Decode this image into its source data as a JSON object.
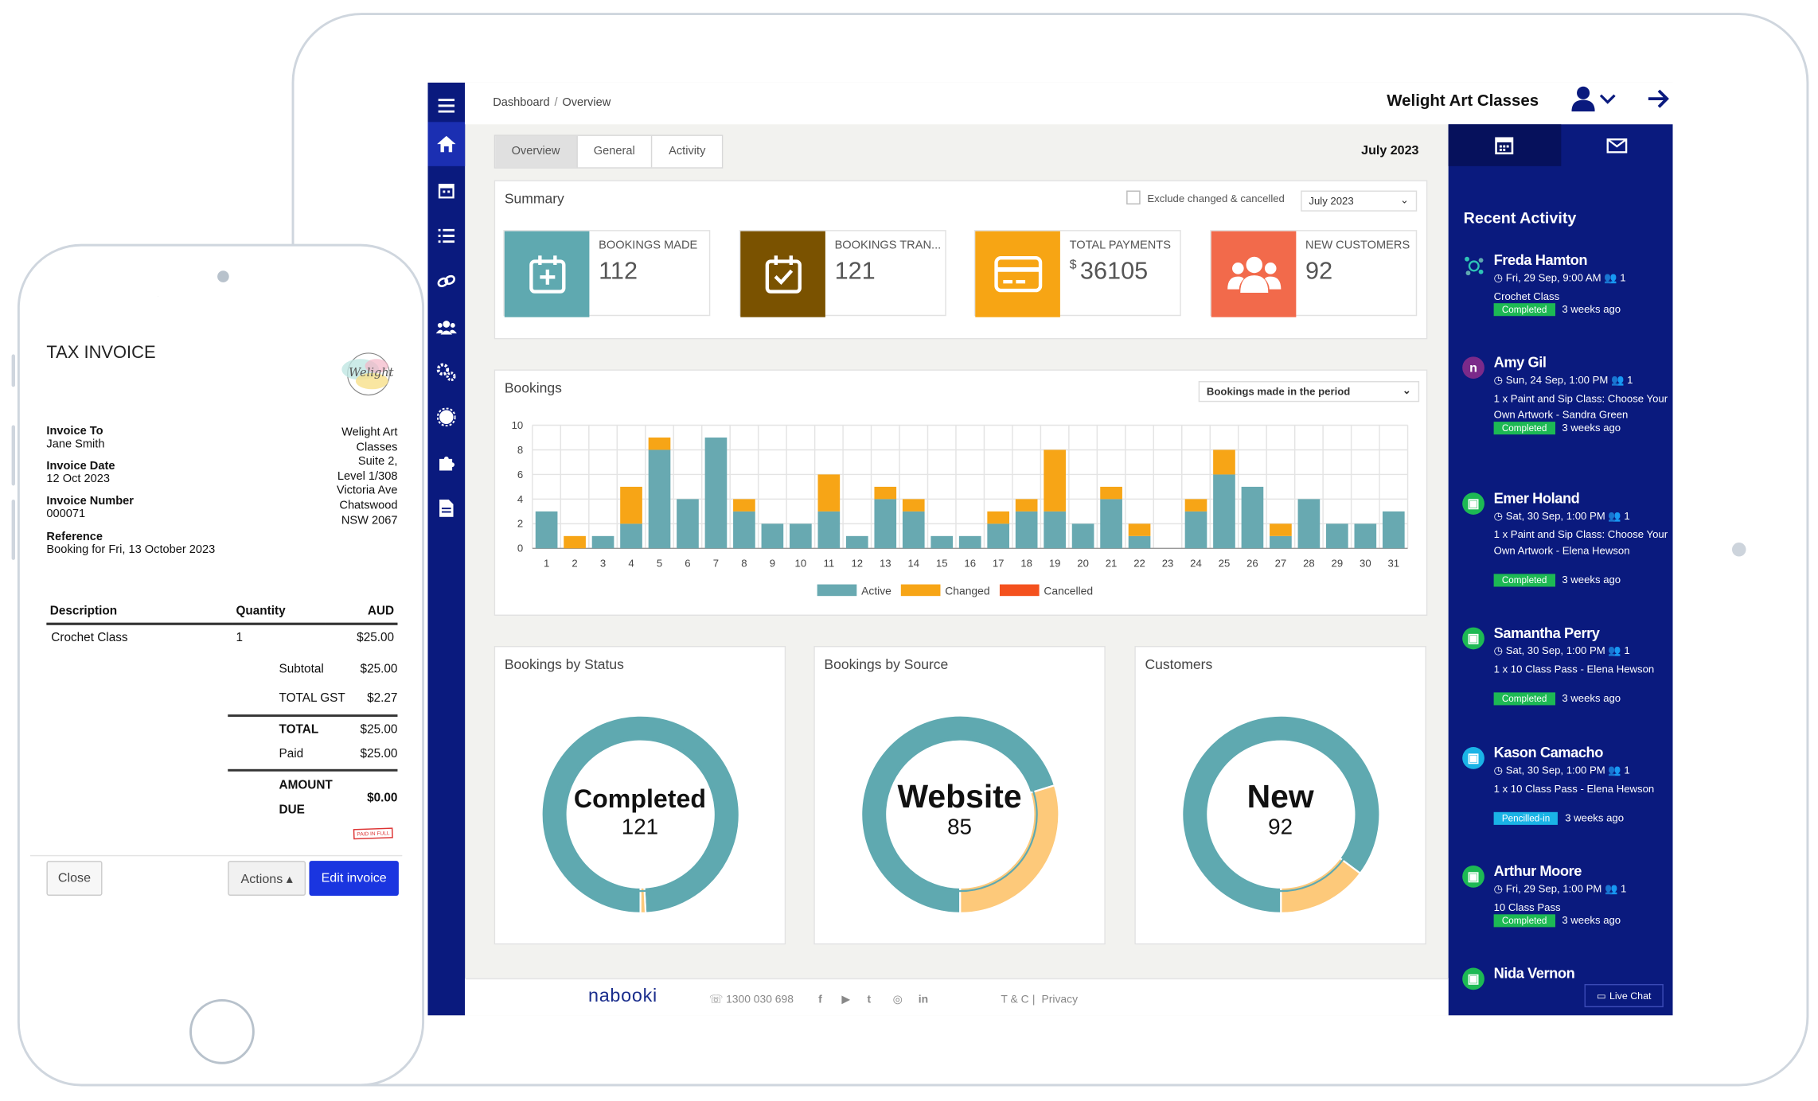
{
  "app": {
    "breadcrumb": [
      "Dashboard",
      "Overview"
    ],
    "brand": "Welight Art Classes"
  },
  "tabs": [
    {
      "label": "Overview",
      "active": true
    },
    {
      "label": "General",
      "active": false
    },
    {
      "label": "Activity",
      "active": false
    }
  ],
  "period_title": "July 2023",
  "summary": {
    "title": "Summary",
    "exclude_label": "Exclude changed & cancelled",
    "period_select": "July 2023",
    "kpis": [
      {
        "label": "BOOKINGS MADE",
        "value": "112",
        "color": "#5fa9b0",
        "icon": "calendar-plus-icon"
      },
      {
        "label": "BOOKINGS TRAN...",
        "value": "121",
        "color": "#7a5200",
        "icon": "calendar-check-icon"
      },
      {
        "label": "TOTAL PAYMENTS",
        "value": "36105",
        "prefix": "$",
        "color": "#f7a514",
        "icon": "credit-card-icon"
      },
      {
        "label": "NEW CUSTOMERS",
        "value": "92",
        "color": "#f26a4b",
        "icon": "users-icon"
      }
    ]
  },
  "bookings_card": {
    "title": "Bookings",
    "select": "Bookings made in the period"
  },
  "chart_data": {
    "type": "bar",
    "stacked": true,
    "categories": [
      "1",
      "2",
      "3",
      "4",
      "5",
      "6",
      "7",
      "8",
      "9",
      "10",
      "11",
      "12",
      "13",
      "14",
      "15",
      "16",
      "17",
      "18",
      "19",
      "20",
      "21",
      "22",
      "23",
      "24",
      "25",
      "26",
      "27",
      "28",
      "29",
      "30",
      "31"
    ],
    "series": [
      {
        "name": "Active",
        "color": "#68a9b1",
        "values": [
          3,
          0,
          1,
          2,
          8,
          4,
          9,
          3,
          2,
          2,
          3,
          1,
          4,
          3,
          1,
          1,
          2,
          3,
          3,
          2,
          4,
          1,
          0,
          3,
          6,
          5,
          1,
          4,
          2,
          2,
          3
        ]
      },
      {
        "name": "Changed",
        "color": "#f7a516",
        "values": [
          0,
          1,
          0,
          3,
          1,
          0,
          0,
          1,
          0,
          0,
          3,
          0,
          1,
          1,
          0,
          0,
          1,
          1,
          5,
          0,
          1,
          1,
          0,
          1,
          2,
          0,
          1,
          0,
          0,
          0,
          0
        ]
      },
      {
        "name": "Cancelled",
        "color": "#f4511e",
        "values": [
          0,
          0,
          0,
          0,
          0,
          0,
          0,
          0,
          0,
          0,
          0,
          0,
          0,
          0,
          0,
          0,
          0,
          0,
          0,
          0,
          0,
          0,
          0,
          0,
          0,
          0,
          0,
          0,
          0,
          0,
          0
        ]
      }
    ],
    "ylim": [
      0,
      10
    ],
    "yticks": [
      "0",
      "2",
      "4",
      "6",
      "8",
      "10"
    ],
    "grid": true,
    "legend": "bottom"
  },
  "donuts": [
    {
      "title": "Bookings by Status",
      "label": "Completed",
      "value": "121",
      "segments": [
        {
          "value": 120,
          "color": "#5fa9b0"
        },
        {
          "value": 1,
          "color": "#fdc97a"
        }
      ]
    },
    {
      "title": "Bookings by Source",
      "label": "Website",
      "value": "85",
      "segments": [
        {
          "value": 85,
          "color": "#5fa9b0"
        },
        {
          "value": 36,
          "color": "#fdc97a"
        }
      ]
    },
    {
      "title": "Customers",
      "label": "New",
      "value": "92",
      "segments": [
        {
          "value": 92,
          "color": "#5fa9b0"
        },
        {
          "value": 16,
          "color": "#fdc97a"
        }
      ]
    }
  ],
  "recent": {
    "title": "Recent Activity",
    "items": [
      {
        "name": "Freda Hamton",
        "avatar": "",
        "avatar_color": "",
        "date": "Fri, 29 Sep, 9:00 AM",
        "count": "1",
        "desc": "Crochet Class",
        "status": "Completed",
        "status_color": "#1db954",
        "ago": "3 weeks ago"
      },
      {
        "name": "Amy Gil",
        "avatar": "n",
        "avatar_color": "#7b2a8a",
        "date": "Sun, 24 Sep, 1:00 PM",
        "count": "1",
        "desc": "1 x Paint and Sip Class: Choose Your Own Artwork - Sandra Green",
        "status": "Completed",
        "status_color": "#1db954",
        "ago": "3 weeks ago"
      },
      {
        "name": "Emer Holand",
        "avatar": "▣",
        "avatar_color": "#1db954",
        "date": "Sat, 30 Sep, 1:00 PM",
        "count": "1",
        "desc": "1 x Paint and Sip Class: Choose Your Own Artwork - Elena Hewson",
        "status": "Completed",
        "status_color": "#1db954",
        "ago": "3 weeks ago"
      },
      {
        "name": "Samantha Perry",
        "avatar": "▣",
        "avatar_color": "#1db954",
        "date": "Sat, 30 Sep, 1:00 PM",
        "count": "1",
        "desc": "1 x 10 Class Pass - Elena Hewson",
        "status": "Completed",
        "status_color": "#1db954",
        "ago": "3 weeks ago"
      },
      {
        "name": "Kason Camacho",
        "avatar": "▣",
        "avatar_color": "#1ab3e6",
        "date": "Sat, 30 Sep, 1:00 PM",
        "count": "1",
        "desc": "1 x 10 Class Pass - Elena Hewson",
        "status": "Pencilled-in",
        "status_color": "#1ab3e6",
        "ago": "3 weeks ago"
      },
      {
        "name": "Arthur Moore",
        "avatar": "▣",
        "avatar_color": "#1db954",
        "date": "Fri, 29 Sep, 1:00 PM",
        "count": "1",
        "desc": "10 Class Pass",
        "status": "Completed",
        "status_color": "#1db954",
        "ago": "3 weeks ago"
      },
      {
        "name": "Nida Vernon",
        "avatar": "▣",
        "avatar_color": "#1db954",
        "date": "",
        "count": "",
        "desc": "",
        "status": "",
        "status_color": "",
        "ago": ""
      }
    ]
  },
  "footer": {
    "logo": "nabooki",
    "phone": "1300 030 698",
    "social": [
      "f",
      "▶",
      "t",
      "◎",
      "in"
    ],
    "tc": "T & C",
    "privacy": "Privacy",
    "live_chat": "Live Chat"
  },
  "invoice": {
    "title": "TAX INVOICE",
    "logo_text": "Welight",
    "invoice_to_label": "Invoice To",
    "invoice_to": "Jane Smith",
    "date_label": "Invoice Date",
    "date": "12 Oct 2023",
    "number_label": "Invoice Number",
    "number": "000071",
    "reference_label": "Reference",
    "reference": "Booking for Fri, 13 October 2023",
    "business_address": [
      "Welight Art",
      "Classes",
      "Suite 2,",
      "Level 1/308",
      "Victoria Ave",
      "Chatswood",
      "NSW 2067"
    ],
    "columns": [
      "Description",
      "Quantity",
      "AUD"
    ],
    "rows": [
      {
        "desc": "Crochet Class",
        "qty": "1",
        "amount": "$25.00"
      }
    ],
    "subtotal_label": "Subtotal",
    "subtotal": "$25.00",
    "gst_label": "TOTAL GST",
    "gst": "$2.27",
    "total_label": "TOTAL",
    "total": "$25.00",
    "paid_label": "Paid",
    "paid": "$25.00",
    "due_label_1": "AMOUNT",
    "due_label_2": "DUE",
    "due": "$0.00",
    "stamp": "PAID IN FULL",
    "close_label": "Close",
    "actions_label": "Actions ▴",
    "edit_label": "Edit invoice"
  }
}
